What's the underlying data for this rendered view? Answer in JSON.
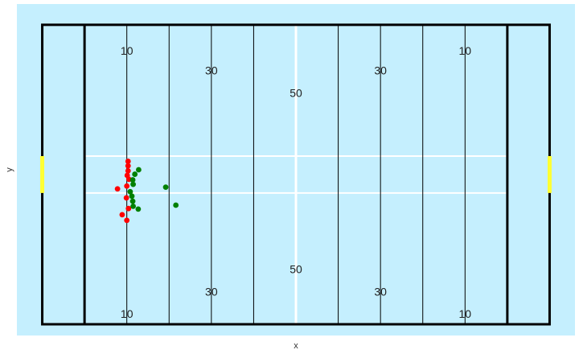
{
  "chart_data": {
    "type": "scatter",
    "title": "",
    "xlabel": "x",
    "ylabel": "y",
    "xlim": [
      -6,
      126
    ],
    "ylim": [
      -2,
      57
    ],
    "grid": false,
    "legend": "none",
    "field": {
      "background_color": "#c5effe",
      "line_color": "#000000",
      "hash_color": "#ffffff",
      "goalpost_color": "#ffff33",
      "boundary_x": [
        0,
        120
      ],
      "goal_lines_x": [
        10,
        110
      ],
      "yard_lines_x": [
        20,
        30,
        40,
        50,
        60,
        70,
        80,
        90,
        100
      ],
      "midfield_x": 60,
      "boundary_y": [
        0,
        53.3
      ],
      "hash_y": [
        23.36,
        29.94
      ],
      "goalpost_y": [
        23.36,
        29.94
      ]
    },
    "yard_numbers": [
      {
        "label": "10",
        "x": 20,
        "y": 48.5
      },
      {
        "label": "30",
        "x": 40,
        "y": 45
      },
      {
        "label": "50",
        "x": 60,
        "y": 41
      },
      {
        "label": "30",
        "x": 80,
        "y": 45
      },
      {
        "label": "10",
        "x": 100,
        "y": 48.5
      },
      {
        "label": "10",
        "x": 20,
        "y": 1.7
      },
      {
        "label": "30",
        "x": 40,
        "y": 5.6
      },
      {
        "label": "50",
        "x": 60,
        "y": 9.6
      },
      {
        "label": "30",
        "x": 80,
        "y": 5.6
      },
      {
        "label": "10",
        "x": 100,
        "y": 1.7
      }
    ],
    "series": [
      {
        "color": "#ff0000",
        "points": [
          [
            20.3,
            29.0
          ],
          [
            20.3,
            28.2
          ],
          [
            20.3,
            27.3
          ],
          [
            20.1,
            26.5
          ],
          [
            20.5,
            25.8
          ],
          [
            20.0,
            24.6
          ],
          [
            17.8,
            24.1
          ],
          [
            19.9,
            22.5
          ],
          [
            20.4,
            20.6
          ],
          [
            18.9,
            19.5
          ],
          [
            20.0,
            18.5
          ]
        ]
      },
      {
        "color": "#008000",
        "points": [
          [
            22.8,
            27.5
          ],
          [
            21.9,
            26.7
          ],
          [
            21.4,
            25.7
          ],
          [
            21.5,
            24.9
          ],
          [
            20.8,
            23.6
          ],
          [
            21.2,
            22.8
          ],
          [
            21.4,
            21.9
          ],
          [
            21.5,
            21.0
          ],
          [
            22.7,
            20.5
          ],
          [
            29.2,
            24.4
          ],
          [
            31.6,
            21.2
          ]
        ]
      }
    ]
  }
}
